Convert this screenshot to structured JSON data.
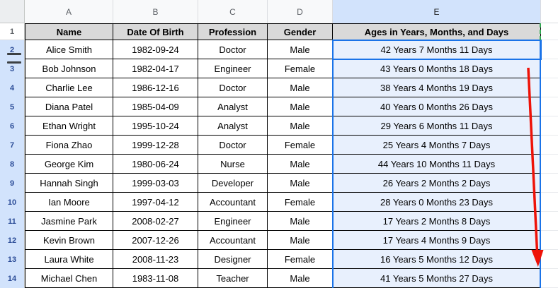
{
  "sheet": {
    "corner_label": "",
    "column_letters": [
      "A",
      "B",
      "C",
      "D",
      "E"
    ],
    "selected_column": "E",
    "header_row": {
      "row_number": "1",
      "cells": [
        "Name",
        "Date Of Birth",
        "Profession",
        "Gender",
        "Ages in Years, Months, and Days"
      ]
    },
    "data_rows": [
      {
        "row_number": "2",
        "name": "Alice Smith",
        "dob": "1982-09-24",
        "profession": "Doctor",
        "gender": "Male",
        "age": "42 Years 7 Months 11 Days"
      },
      {
        "row_number": "3",
        "name": "Bob Johnson",
        "dob": "1982-04-17",
        "profession": "Engineer",
        "gender": "Female",
        "age": "43 Years 0 Months 18 Days"
      },
      {
        "row_number": "4",
        "name": "Charlie Lee",
        "dob": "1986-12-16",
        "profession": "Doctor",
        "gender": "Male",
        "age": "38 Years 4 Months 19 Days"
      },
      {
        "row_number": "5",
        "name": "Diana Patel",
        "dob": "1985-04-09",
        "profession": "Analyst",
        "gender": "Male",
        "age": "40 Years 0 Months 26 Days"
      },
      {
        "row_number": "6",
        "name": "Ethan Wright",
        "dob": "1995-10-24",
        "profession": "Analyst",
        "gender": "Male",
        "age": "29 Years 6 Months 11 Days"
      },
      {
        "row_number": "7",
        "name": "Fiona Zhao",
        "dob": "1999-12-28",
        "profession": "Doctor",
        "gender": "Female",
        "age": "25 Years 4 Months 7 Days"
      },
      {
        "row_number": "8",
        "name": "George Kim",
        "dob": "1980-06-24",
        "profession": "Nurse",
        "gender": "Male",
        "age": "44 Years 10 Months 11 Days"
      },
      {
        "row_number": "9",
        "name": "Hannah Singh",
        "dob": "1999-03-03",
        "profession": "Developer",
        "gender": "Male",
        "age": "26 Years 2 Months 2 Days"
      },
      {
        "row_number": "10",
        "name": "Ian Moore",
        "dob": "1997-04-12",
        "profession": "Accountant",
        "gender": "Female",
        "age": "28 Years 0 Months 23 Days"
      },
      {
        "row_number": "11",
        "name": "Jasmine Park",
        "dob": "2008-02-27",
        "profession": "Engineer",
        "gender": "Male",
        "age": "17 Years 2 Months 8 Days"
      },
      {
        "row_number": "12",
        "name": "Kevin Brown",
        "dob": "2007-12-26",
        "profession": "Accountant",
        "gender": "Male",
        "age": "17 Years 4 Months 9 Days"
      },
      {
        "row_number": "13",
        "name": "Laura White",
        "dob": "2008-11-23",
        "profession": "Designer",
        "gender": "Female",
        "age": "16 Years 5 Months 12 Days"
      },
      {
        "row_number": "14",
        "name": "Michael Chen",
        "dob": "1983-11-08",
        "profession": "Teacher",
        "gender": "Male",
        "age": "41 Years 5 Months 27 Days"
      }
    ],
    "selection": {
      "range": "E2:E14",
      "active_cell": "E2"
    },
    "annotations": {
      "red_arrow": "red-down-arrow over column E from row 3 to row 13",
      "row_resize_handle": "double-bar row resize indicator between rows 2 and 3",
      "green_dashed_border": "green dashed right border on cell E1"
    }
  },
  "colors": {
    "selection_blue": "#1a73e8",
    "selected_column_tint": "#e8f0fd",
    "header_row_fill": "#d9d9d9",
    "row_header_fill": "#d2e3fc",
    "arrow_red": "#ee1208",
    "green_dashed": "#34a853",
    "cell_border_black": "#000000"
  }
}
